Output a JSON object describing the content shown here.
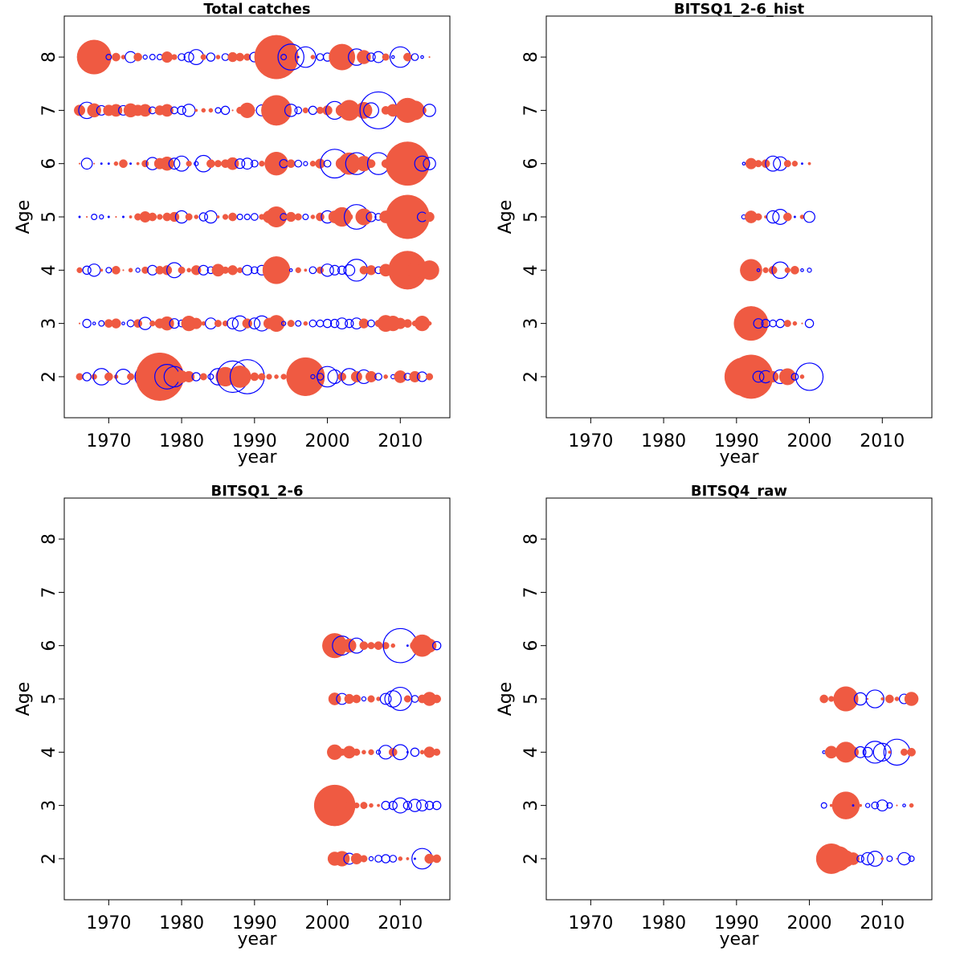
{
  "chart_data": [
    {
      "type": "bubble",
      "title": "Total catches",
      "xlabel": "year",
      "ylabel": "Age",
      "x": [
        1966,
        1967,
        1968,
        1969,
        1970,
        1971,
        1972,
        1973,
        1974,
        1975,
        1976,
        1977,
        1978,
        1979,
        1980,
        1981,
        1982,
        1983,
        1984,
        1985,
        1986,
        1987,
        1988,
        1989,
        1990,
        1991,
        1992,
        1993,
        1994,
        1995,
        1996,
        1997,
        1998,
        1999,
        2000,
        2001,
        2002,
        2003,
        2004,
        2005,
        2006,
        2007,
        2008,
        2009,
        2010,
        2011,
        2012,
        2013,
        2014
      ],
      "y": [
        2,
        3,
        4,
        5,
        6,
        7,
        8
      ],
      "values": [
        [
          0.5,
          -0.6,
          0.4,
          -1.2,
          0.6,
          0.3,
          -1.1,
          0.5,
          -0.4,
          -1.5,
          1.2,
          3.5,
          -1.8,
          -1.5,
          0.9,
          0.8,
          -0.6,
          0.5,
          -0.4,
          -1.2,
          1.4,
          -2.3,
          1.6,
          -2.5,
          0.6,
          0.5,
          0.4,
          0.3,
          0.4,
          -0.5,
          -1.2,
          2.8,
          -0.3,
          -0.5,
          -1.5,
          -1.0,
          0.6,
          -1.2,
          0.8,
          -1.0,
          0.8,
          -0.5,
          0.3,
          -0.3,
          0.9,
          -0.5,
          0.8,
          -0.7,
          0.5
        ],
        [
          0.1,
          -0.6,
          -0.2,
          -0.4,
          0.6,
          0.7,
          -0.2,
          -0.5,
          0.6,
          -0.9,
          0.4,
          0.7,
          1.0,
          -0.7,
          -0.5,
          1.1,
          0.8,
          0.3,
          -0.8,
          0.5,
          0.4,
          -0.8,
          -1.1,
          0.7,
          -0.8,
          -1.1,
          0.8,
          1.2,
          -0.3,
          0.5,
          -0.4,
          0.3,
          -0.5,
          -0.5,
          -0.6,
          -0.6,
          -0.8,
          -0.6,
          -0.8,
          0.7,
          -0.5,
          0.5,
          1.2,
          1.1,
          0.8,
          0.6,
          0.4,
          1.1,
          0.3
        ],
        [
          0.4,
          -0.6,
          -0.9,
          0.2,
          -0.4,
          0.6,
          0.1,
          0.3,
          -0.3,
          0.5,
          -0.7,
          0.6,
          0.7,
          -1.1,
          0.5,
          0.3,
          0.7,
          -0.7,
          -0.5,
          0.9,
          0.5,
          0.7,
          0.4,
          -0.7,
          -0.5,
          -0.7,
          -0.6,
          2.0,
          0.1,
          -0.2,
          0.4,
          0.2,
          -0.5,
          0.5,
          -0.9,
          -0.7,
          -0.6,
          -0.8,
          -1.6,
          0.6,
          0.7,
          -0.5,
          0.9,
          0.5,
          0.6,
          2.8,
          1.2,
          0.9,
          1.4
        ],
        [
          -0.1,
          0.1,
          -0.4,
          -0.3,
          -0.1,
          0.1,
          -0.1,
          0.2,
          0.5,
          0.8,
          0.6,
          0.4,
          0.6,
          0.7,
          -0.9,
          0.5,
          0.3,
          -0.6,
          -0.9,
          0.2,
          0.4,
          0.6,
          -0.4,
          -0.4,
          -0.5,
          0.4,
          0.9,
          1.5,
          -0.5,
          0.7,
          0.5,
          -0.4,
          0.3,
          0.6,
          -0.9,
          0.9,
          1.4,
          0.5,
          -1.8,
          1.2,
          -0.7,
          -0.5,
          0.9,
          1.1,
          1.8,
          3.2,
          0.8,
          -0.7,
          0.7
        ],
        [
          0.1,
          -0.8,
          0.05,
          -0.1,
          -0.1,
          0.3,
          0.6,
          -0.1,
          0.2,
          0.5,
          -0.9,
          0.8,
          1.0,
          -0.8,
          -1.1,
          0.4,
          -0.3,
          -1.2,
          0.6,
          0.5,
          0.6,
          0.9,
          -0.7,
          -0.8,
          -0.5,
          0.4,
          0.4,
          1.7,
          -0.6,
          0.6,
          -0.5,
          -0.3,
          0.4,
          0.7,
          -0.5,
          -2.1,
          0.9,
          1.6,
          -1.6,
          1.1,
          0.6,
          -1.6,
          0.6,
          0.9,
          1.8,
          3.2,
          0.7,
          -1.1,
          -0.9
        ],
        [
          0.8,
          -1.2,
          1.0,
          -0.7,
          0.8,
          0.9,
          -0.7,
          1.0,
          0.8,
          0.9,
          -0.5,
          0.7,
          0.9,
          -0.5,
          -0.6,
          -0.9,
          0.2,
          0.3,
          0.3,
          -0.4,
          -0.6,
          0.1,
          0.5,
          1.1,
          0.1,
          -0.8,
          0.6,
          2.2,
          1.1,
          -0.9,
          -0.5,
          0.4,
          -0.6,
          0.5,
          0.7,
          -1.3,
          0.9,
          1.5,
          0.3,
          1.2,
          -1.1,
          -2.7,
          0.6,
          0.9,
          0.7,
          1.8,
          1.4,
          0.6,
          -0.9
        ],
        [
          0.1,
          -1.3,
          2.5,
          0.9,
          -0.4,
          0.6,
          0.3,
          -0.8,
          0.6,
          -0.3,
          -0.4,
          -0.4,
          0.8,
          0.4,
          -0.5,
          -0.7,
          -1.1,
          0.4,
          -0.6,
          0.3,
          -0.5,
          0.7,
          0.6,
          0.5,
          -0.7,
          -0.9,
          0.7,
          3.2,
          -0.4,
          -1.9,
          -0.1,
          -1.5,
          0.3,
          -0.5,
          -0.6,
          0.7,
          1.9,
          0.6,
          -1.2,
          1.0,
          -0.6,
          -0.8,
          0.5,
          -0.2,
          -1.5,
          0.6,
          -0.5,
          -0.2,
          0.1
        ]
      ],
      "positive_color": "#ef5a42",
      "negative_color": "#0000ff",
      "xlim": [
        1963.9,
        2016.8
      ],
      "ylim": [
        1.23,
        8.77
      ],
      "xticks": [
        1970,
        1980,
        1990,
        2000,
        2010
      ],
      "yticks": [
        2,
        3,
        4,
        5,
        6,
        7,
        8
      ]
    },
    {
      "type": "bubble",
      "title": "BITSQ1_2-6_hist",
      "xlabel": "year",
      "ylabel": "Age",
      "x": [
        1991,
        1992,
        1993,
        1994,
        1995,
        1996,
        1997,
        1998,
        1999,
        2000
      ],
      "y": [
        2,
        3,
        4,
        5,
        6
      ],
      "values": [
        [
          2.8,
          3.2,
          -0.8,
          -0.9,
          0.8,
          -1.0,
          1.2,
          -0.5,
          0.3,
          -2.0
        ],
        [
          0.5,
          2.5,
          -0.7,
          -0.6,
          -0.5,
          -0.6,
          0.5,
          0.3,
          0.1,
          -0.6
        ],
        [
          0.3,
          1.6,
          -0.2,
          0.4,
          0.6,
          -1.2,
          0.4,
          0.6,
          -0.2,
          -0.3
        ],
        [
          -0.3,
          0.9,
          0.5,
          0.2,
          -0.9,
          -1.1,
          0.6,
          -0.1,
          0.3,
          -0.8
        ],
        [
          -0.2,
          0.8,
          0.5,
          0.6,
          -1.1,
          -1.0,
          0.5,
          0.4,
          -0.1,
          0.2
        ]
      ],
      "positive_color": "#ef5a42",
      "negative_color": "#0000ff",
      "xlim": [
        1963.9,
        2016.8
      ],
      "ylim": [
        1.23,
        8.77
      ],
      "xticks": [
        1970,
        1980,
        1990,
        2000,
        2010
      ],
      "yticks": [
        2,
        3,
        4,
        5,
        6,
        7,
        8
      ]
    },
    {
      "type": "bubble",
      "title": "BITSQ1_2-6",
      "xlabel": "year",
      "ylabel": "Age",
      "x": [
        2001,
        2002,
        2003,
        2004,
        2005,
        2006,
        2007,
        2008,
        2009,
        2010,
        2011,
        2012,
        2013,
        2014,
        2015
      ],
      "y": [
        2,
        3,
        4,
        5,
        6
      ],
      "values": [
        [
          1.0,
          1.1,
          -0.8,
          0.8,
          0.5,
          -0.3,
          -0.5,
          -0.6,
          -0.5,
          0.3,
          0.2,
          -0.1,
          -1.5,
          0.7,
          0.6
        ],
        [
          3.0,
          0.9,
          0.6,
          0.4,
          0.5,
          0.3,
          0.2,
          -0.6,
          -0.6,
          -1.1,
          -0.6,
          -0.9,
          -0.8,
          -0.6,
          -0.6
        ],
        [
          1.1,
          0.5,
          0.9,
          0.5,
          0.3,
          0.4,
          -0.3,
          -1.0,
          0.6,
          -1.1,
          -0.1,
          -0.6,
          0.3,
          0.8,
          0.5
        ],
        [
          0.9,
          -0.8,
          0.7,
          0.6,
          -0.3,
          0.5,
          0.3,
          -0.8,
          -1.2,
          -1.7,
          0.5,
          -0.5,
          0.6,
          1.0,
          0.6
        ],
        [
          1.8,
          -1.4,
          1.0,
          -1.1,
          0.6,
          0.5,
          0.6,
          0.5,
          0.3,
          -2.5,
          -0.1,
          0.7,
          1.6,
          1.0,
          -0.6
        ]
      ],
      "positive_color": "#ef5a42",
      "negative_color": "#0000ff",
      "xlim": [
        1963.9,
        2016.8
      ],
      "ylim": [
        1.23,
        8.77
      ],
      "xticks": [
        1970,
        1980,
        1990,
        2000,
        2010
      ],
      "yticks": [
        2,
        3,
        4,
        5,
        6,
        7,
        8
      ]
    },
    {
      "type": "bubble",
      "title": "BITSQ4_raw",
      "xlabel": "year",
      "ylabel": "Age",
      "x": [
        2002,
        2003,
        2004,
        2005,
        2006,
        2007,
        2008,
        2009,
        2010,
        2011,
        2012,
        2013,
        2014
      ],
      "y": [
        2,
        3,
        4,
        5
      ],
      "values": [
        [
          -0.8,
          2.2,
          1.8,
          1.2,
          0.9,
          -0.5,
          -0.9,
          -1.1,
          0.2,
          -0.4,
          0.1,
          -0.9,
          -0.4
        ],
        [
          -0.4,
          0.2,
          0.6,
          2.0,
          -0.1,
          0.2,
          -0.3,
          -0.5,
          -0.8,
          -0.4,
          0.1,
          -0.2,
          0.3
        ],
        [
          -0.2,
          0.9,
          -0.1,
          1.5,
          0.8,
          -0.8,
          -0.7,
          -1.6,
          -1.3,
          0.2,
          -1.9,
          0.5,
          0.6
        ],
        [
          0.6,
          0.4,
          0.5,
          1.8,
          0.1,
          -0.9,
          0.1,
          -1.3,
          0.2,
          0.6,
          0.3,
          -0.7,
          1.0
        ]
      ],
      "positive_color": "#ef5a42",
      "negative_color": "#0000ff",
      "xlim": [
        1963.9,
        2016.8
      ],
      "ylim": [
        1.23,
        8.77
      ],
      "xticks": [
        1970,
        1980,
        1990,
        2000,
        2010
      ],
      "yticks": [
        2,
        3,
        4,
        5,
        6,
        7,
        8
      ]
    }
  ]
}
